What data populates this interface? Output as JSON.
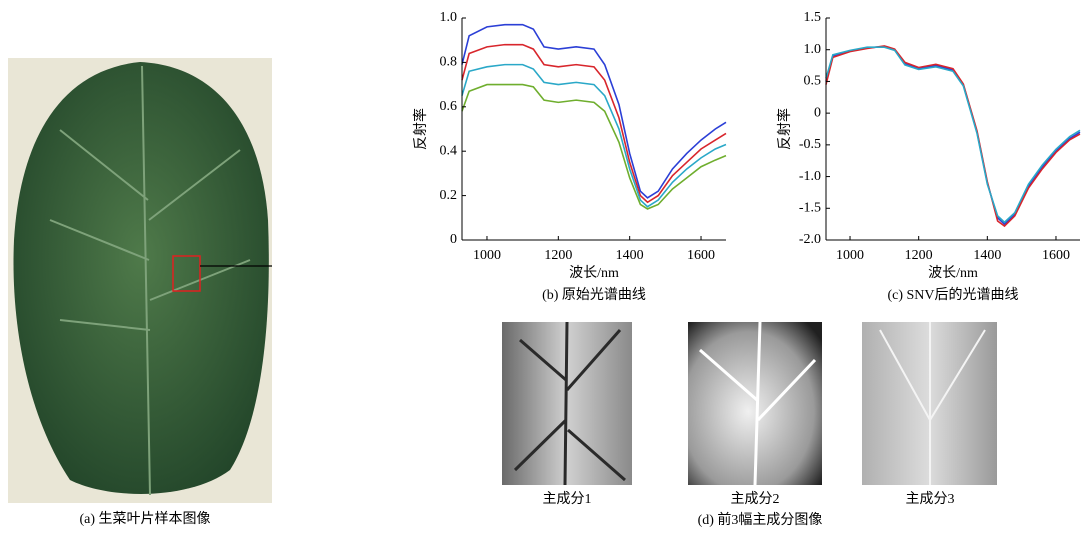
{
  "chart_data": [
    {
      "type": "line",
      "ylabel": "反射率",
      "xlabel": "波长/nm",
      "caption": "(b) 原始光谱曲线",
      "x": [
        930,
        950,
        1000,
        1050,
        1100,
        1130,
        1160,
        1200,
        1250,
        1300,
        1330,
        1370,
        1400,
        1430,
        1450,
        1480,
        1520,
        1560,
        1600,
        1640,
        1670
      ],
      "series": [
        {
          "color": "#2b3fd6",
          "values": [
            0.79,
            0.92,
            0.96,
            0.97,
            0.97,
            0.95,
            0.87,
            0.86,
            0.87,
            0.86,
            0.79,
            0.61,
            0.39,
            0.22,
            0.19,
            0.22,
            0.32,
            0.39,
            0.45,
            0.5,
            0.53
          ]
        },
        {
          "color": "#d8262c",
          "values": [
            0.72,
            0.84,
            0.87,
            0.88,
            0.88,
            0.86,
            0.79,
            0.78,
            0.79,
            0.78,
            0.72,
            0.55,
            0.35,
            0.2,
            0.17,
            0.2,
            0.29,
            0.35,
            0.41,
            0.45,
            0.48
          ]
        },
        {
          "color": "#2aa8c8",
          "values": [
            0.65,
            0.76,
            0.78,
            0.79,
            0.79,
            0.77,
            0.71,
            0.7,
            0.71,
            0.7,
            0.65,
            0.5,
            0.32,
            0.18,
            0.15,
            0.18,
            0.26,
            0.32,
            0.37,
            0.41,
            0.43
          ]
        },
        {
          "color": "#6fae2e",
          "values": [
            0.58,
            0.67,
            0.7,
            0.7,
            0.7,
            0.69,
            0.63,
            0.62,
            0.63,
            0.62,
            0.58,
            0.44,
            0.28,
            0.16,
            0.14,
            0.16,
            0.23,
            0.28,
            0.33,
            0.36,
            0.38
          ]
        }
      ],
      "xlim": [
        930,
        1670
      ],
      "xticks": [
        1000,
        1200,
        1400,
        1600
      ],
      "ylim": [
        0,
        1
      ],
      "yticks": [
        0,
        0.2,
        0.4,
        0.6,
        0.8,
        {
          "value": 1,
          "label": "1.0"
        }
      ]
    },
    {
      "type": "line",
      "ylabel": "反射率",
      "xlabel": "波长/nm",
      "caption": "(c) SNV后的光谱曲线",
      "x": [
        930,
        950,
        1000,
        1050,
        1100,
        1130,
        1160,
        1200,
        1250,
        1300,
        1330,
        1370,
        1400,
        1430,
        1450,
        1480,
        1520,
        1560,
        1600,
        1640,
        1670
      ],
      "series": [
        {
          "color": "#2b3fd6",
          "values": [
            0.5,
            0.9,
            0.98,
            1.03,
            1.05,
            1.0,
            0.78,
            0.7,
            0.75,
            0.68,
            0.45,
            -0.3,
            -1.1,
            -1.65,
            -1.75,
            -1.6,
            -1.15,
            -0.85,
            -0.6,
            -0.4,
            -0.3
          ]
        },
        {
          "color": "#d8262c",
          "values": [
            0.45,
            0.88,
            0.97,
            1.02,
            1.06,
            1.01,
            0.8,
            0.72,
            0.77,
            0.7,
            0.46,
            -0.28,
            -1.08,
            -1.7,
            -1.78,
            -1.62,
            -1.18,
            -0.88,
            -0.62,
            -0.42,
            -0.33
          ]
        },
        {
          "color": "#2aa8c8",
          "values": [
            0.55,
            0.92,
            0.99,
            1.04,
            1.04,
            0.99,
            0.76,
            0.69,
            0.73,
            0.66,
            0.43,
            -0.32,
            -1.12,
            -1.62,
            -1.72,
            -1.57,
            -1.12,
            -0.82,
            -0.57,
            -0.37,
            -0.27
          ]
        }
      ],
      "xlim": [
        930,
        1670
      ],
      "xticks": [
        1000,
        1200,
        1400,
        1600
      ],
      "ylim": [
        -2,
        1.5
      ],
      "yticks": [
        {
          "value": -2,
          "label": "-2.0"
        },
        {
          "value": -1.5,
          "label": "-1.5"
        },
        {
          "value": -1,
          "label": "-1.0"
        },
        {
          "value": -0.5,
          "label": "-0.5"
        },
        0,
        0.5,
        {
          "value": 1,
          "label": "1.0"
        },
        1.5
      ]
    }
  ],
  "figure": {
    "caption_a": "(a) 生菜叶片样本图像",
    "pc_labels": [
      "主成分1",
      "主成分2",
      "主成分3"
    ],
    "caption_d": "(d) 前3幅主成分图像"
  }
}
